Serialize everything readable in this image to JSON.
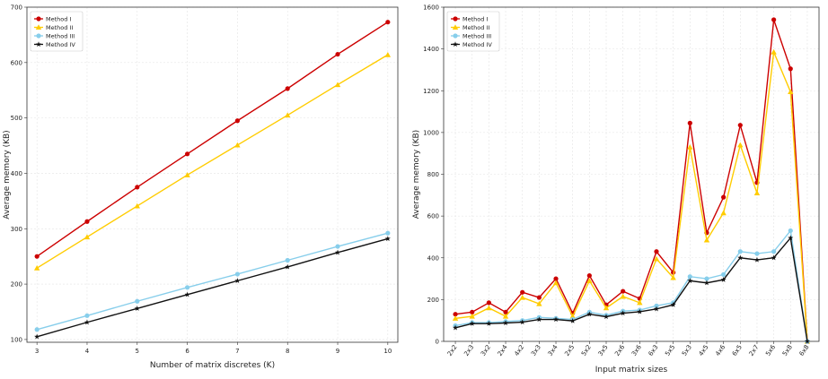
{
  "chart_data": [
    {
      "type": "line",
      "title": "",
      "xlabel": "Number of matrix discretes (K)",
      "ylabel": "Average memory (KB)",
      "x": [
        3,
        4,
        5,
        6,
        7,
        8,
        9,
        10
      ],
      "xticks": [
        "3",
        "4",
        "5",
        "6",
        "7",
        "8",
        "9",
        "10"
      ],
      "yticks": [
        "100",
        "200",
        "300",
        "400",
        "500",
        "600",
        "700"
      ],
      "xlim": [
        2.8,
        10.2
      ],
      "ylim": [
        95,
        700
      ],
      "grid": true,
      "legend_position": "top-left",
      "series": [
        {
          "name": "Method I",
          "color": "#cc0000",
          "marker": "circle",
          "values": [
            250,
            313,
            375,
            435,
            495,
            553,
            615,
            673
          ]
        },
        {
          "name": "Method II",
          "color": "#ffcc00",
          "marker": "triangle",
          "values": [
            229,
            285,
            341,
            397,
            451,
            505,
            560,
            614
          ]
        },
        {
          "name": "Method III",
          "color": "#87ceeb",
          "marker": "circle",
          "values": [
            118,
            143,
            169,
            194,
            218,
            243,
            268,
            292
          ]
        },
        {
          "name": "Method IV",
          "color": "#111111",
          "marker": "star",
          "values": [
            105,
            131,
            156,
            181,
            206,
            231,
            257,
            282
          ]
        }
      ]
    },
    {
      "type": "line",
      "title": "",
      "xlabel": "Input matrix sizes",
      "ylabel": "Average memory (KB)",
      "categories": [
        "2x2",
        "2x3",
        "3x2",
        "2x4",
        "4x2",
        "3x3",
        "3x4",
        "2x5",
        "5x2",
        "3x5",
        "2x6",
        "3x6",
        "6x3",
        "5x5",
        "5x3",
        "4x5",
        "4x6",
        "6x5",
        "2x7",
        "5x6",
        "5x8",
        "6x8"
      ],
      "yticks": [
        "0",
        "200",
        "400",
        "600",
        "800",
        "1000",
        "1200",
        "1400",
        "1600"
      ],
      "ylim": [
        0,
        1600
      ],
      "grid": true,
      "legend_position": "top-left",
      "series": [
        {
          "name": "Method I",
          "color": "#cc0000",
          "marker": "circle",
          "values": [
            130,
            140,
            185,
            140,
            235,
            210,
            300,
            135,
            315,
            175,
            240,
            205,
            430,
            330,
            1045,
            520,
            690,
            1035,
            760,
            1540,
            1305,
            0
          ]
        },
        {
          "name": "Method II",
          "color": "#ffcc00",
          "marker": "triangle",
          "values": [
            110,
            120,
            160,
            120,
            210,
            180,
            280,
            120,
            290,
            160,
            215,
            185,
            395,
            305,
            930,
            485,
            615,
            940,
            710,
            1385,
            1195,
            0
          ]
        },
        {
          "name": "Method III",
          "color": "#87ceeb",
          "marker": "circle",
          "values": [
            75,
            90,
            90,
            95,
            100,
            115,
            110,
            105,
            140,
            125,
            145,
            150,
            170,
            185,
            310,
            300,
            320,
            430,
            420,
            430,
            530,
            0
          ]
        },
        {
          "name": "Method IV",
          "color": "#111111",
          "marker": "star",
          "values": [
            65,
            85,
            85,
            88,
            92,
            105,
            105,
            98,
            130,
            118,
            135,
            142,
            155,
            175,
            290,
            280,
            295,
            400,
            390,
            400,
            495,
            0
          ]
        }
      ]
    }
  ]
}
